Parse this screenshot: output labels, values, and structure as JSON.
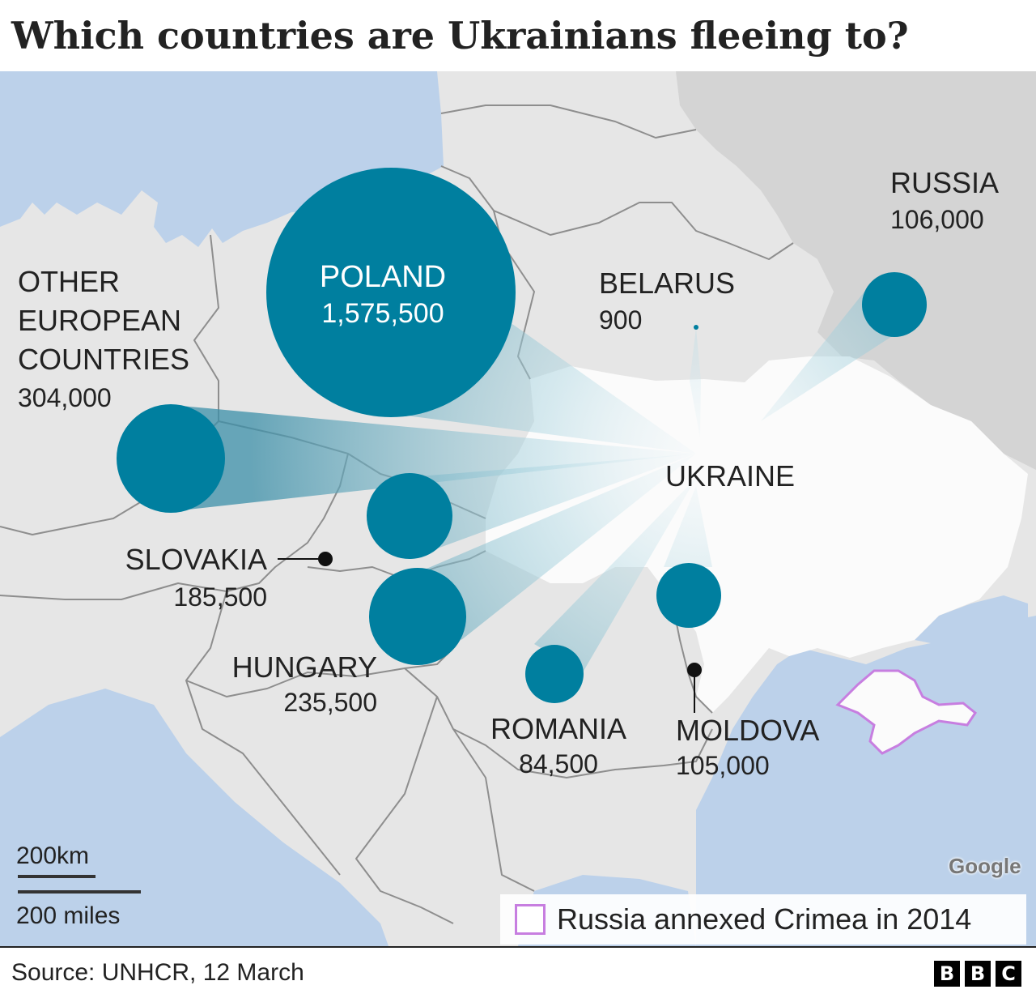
{
  "title": "Which countries are Ukrainians fleeing to?",
  "colors": {
    "circle": "#007f9f",
    "land": "#e6e6e6",
    "ukraine": "#fbfbfb",
    "russia": "#d4d4d4",
    "water": "#bcd1ea",
    "crimea_outline": "#c77ee0"
  },
  "origin": {
    "name": "UKRAINE"
  },
  "destinations": [
    {
      "key": "poland",
      "name": "POLAND",
      "value": "1,575,500",
      "refugees": 1575500
    },
    {
      "key": "other",
      "name_lines": [
        "OTHER",
        "EUROPEAN",
        "COUNTRIES"
      ],
      "value": "304,000",
      "refugees": 304000
    },
    {
      "key": "slovakia",
      "name": "SLOVAKIA",
      "value": "185,500",
      "refugees": 185500
    },
    {
      "key": "hungary",
      "name": "HUNGARY",
      "value": "235,500",
      "refugees": 235500
    },
    {
      "key": "romania",
      "name": "ROMANIA",
      "value": "84,500",
      "refugees": 84500
    },
    {
      "key": "moldova",
      "name": "MOLDOVA",
      "value": "105,000",
      "refugees": 105000
    },
    {
      "key": "russia",
      "name": "RUSSIA",
      "value": "106,000",
      "refugees": 106000
    },
    {
      "key": "belarus",
      "name": "BELARUS",
      "value": "900",
      "refugees": 900
    }
  ],
  "scale": {
    "km_label": "200km",
    "miles_label": "200 miles"
  },
  "legend": {
    "label": "Russia annexed Crimea in 2014"
  },
  "attribution": "Google",
  "source": "Source: UNHCR, 12 March",
  "logo": [
    "B",
    "B",
    "C"
  ]
}
